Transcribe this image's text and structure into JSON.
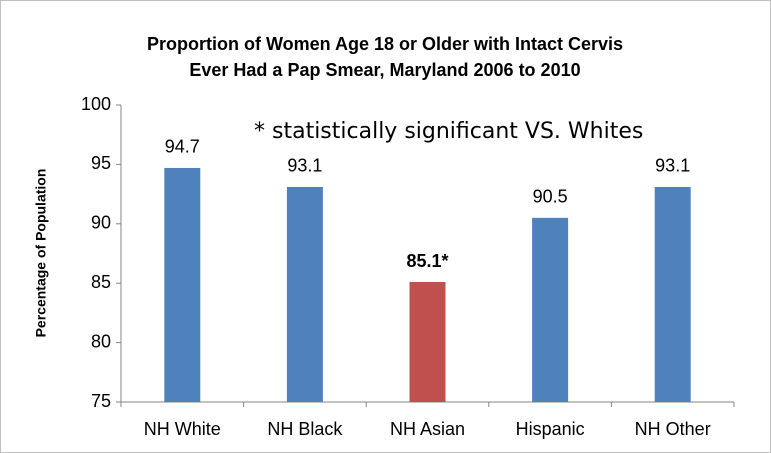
{
  "chart_data": {
    "type": "bar",
    "title": [
      "Proportion of Women Age 18 or Older with Intact Cervis",
      "Ever Had a Pap Smear, Maryland 2006 to 2010"
    ],
    "y_label": "Percentage of Population",
    "annotation": "* statistically significant VS. Whites",
    "categories": [
      "NH White",
      "NH Black",
      "NH Asian",
      "Hispanic",
      "NH Other"
    ],
    "values": [
      94.7,
      93.1,
      85.1,
      90.5,
      93.1
    ],
    "value_labels": [
      "94.7",
      "93.1",
      "85.1*",
      "90.5",
      "93.1"
    ],
    "bold_value_labels": [
      false,
      false,
      true,
      false,
      false
    ],
    "colors": [
      "#4f81bd",
      "#4f81bd",
      "#c0504d",
      "#4f81bd",
      "#4f81bd"
    ],
    "ylim": [
      75,
      100
    ],
    "yticks": [
      75,
      80,
      85,
      90,
      95,
      100
    ],
    "grid": false
  }
}
